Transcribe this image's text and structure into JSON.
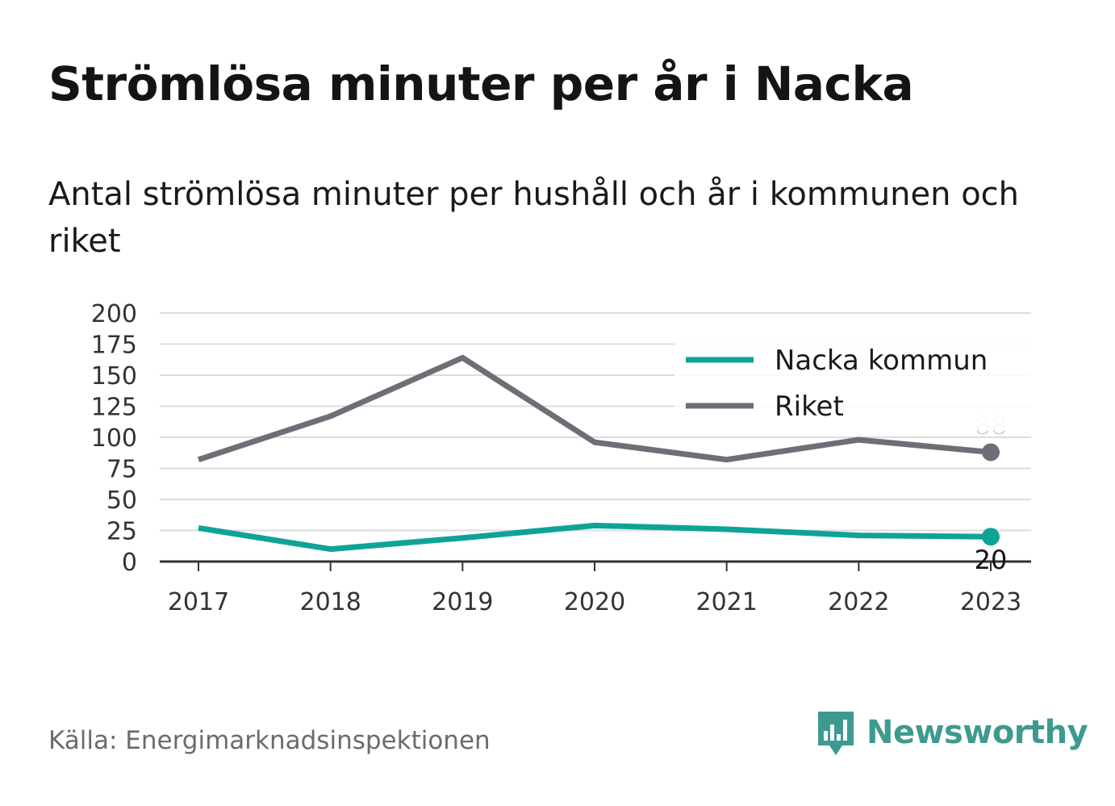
{
  "title": "Strömlösa minuter per år i Nacka",
  "subtitle": "Antal strömlösa minuter per hushåll och år i kommunen och riket",
  "source": "Källa: Energimarknadsinspektionen",
  "brand": "Newsworthy",
  "colors": {
    "nacka": "#0fa398",
    "riket": "#6e6e76",
    "grid": "#dcdcdc",
    "axis": "#333333",
    "brand": "#3e9a8f"
  },
  "icons": {
    "logo": "bar-chart-speech-bubble-icon"
  },
  "chart_data": {
    "type": "line",
    "x": [
      "2017",
      "2018",
      "2019",
      "2020",
      "2021",
      "2022",
      "2023"
    ],
    "ylim": [
      0,
      200
    ],
    "yticks": [
      "0",
      "25",
      "50",
      "75",
      "100",
      "125",
      "150",
      "175",
      "200"
    ],
    "grid": true,
    "legend_position": "top-right",
    "series": [
      {
        "name": "Nacka kommun",
        "color": "#0fa398",
        "values": [
          27,
          10,
          19,
          29,
          26,
          21,
          20
        ],
        "end_label": "20"
      },
      {
        "name": "Riket",
        "color": "#6e6e76",
        "values": [
          82,
          117,
          164,
          96,
          82,
          98,
          88
        ],
        "end_label": "88"
      }
    ]
  }
}
